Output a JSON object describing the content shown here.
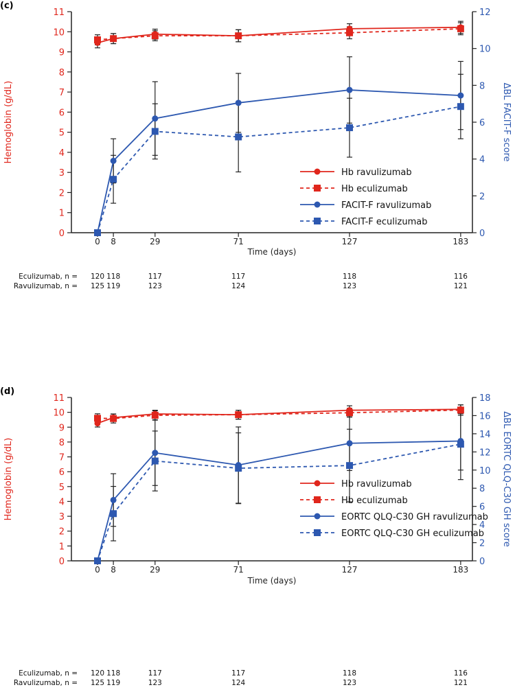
{
  "colors": {
    "red": "#e0261c",
    "blue": "#2d58b0",
    "black": "#222222"
  },
  "chart_data": [
    {
      "panel_label": "(c)",
      "type": "line",
      "xlabel": "Time (days)",
      "x": [
        0,
        8,
        29,
        71,
        127,
        183
      ],
      "x_tick_labels": [
        "0",
        "8",
        "29",
        "71",
        "127",
        "183"
      ],
      "ylabel_left": "Hemoglobin (g/dL)",
      "ylim_left": [
        0,
        11
      ],
      "y_ticks_left": [
        "0",
        "1",
        "2",
        "3",
        "4",
        "5",
        "6",
        "7",
        "8",
        "9",
        "10",
        "11"
      ],
      "ylabel_right": "ΔBL FACIT-F score",
      "ylim_right": [
        0,
        12
      ],
      "y_ticks_right": [
        "0",
        "2",
        "4",
        "6",
        "8",
        "10",
        "12"
      ],
      "legend_position": "bottom-right",
      "series": [
        {
          "name": "Hb ravulizumab",
          "axis": "left",
          "color": "red",
          "dash": false,
          "marker": "circle",
          "values": [
            9.45,
            9.66,
            9.88,
            9.8,
            10.15,
            10.22
          ],
          "err": [
            0.25,
            0.25,
            0.25,
            0.3,
            0.25,
            0.3
          ]
        },
        {
          "name": "Hb eculizumab",
          "axis": "left",
          "color": "red",
          "dash": true,
          "marker": "square",
          "values": [
            9.6,
            9.66,
            9.8,
            9.8,
            9.95,
            10.15
          ],
          "err": [
            0.25,
            0.25,
            0.25,
            0.3,
            0.3,
            0.3
          ]
        },
        {
          "name": "FACIT-F ravulizumab",
          "axis": "right",
          "color": "blue",
          "dash": false,
          "marker": "circle",
          "values": [
            0,
            3.9,
            6.2,
            7.05,
            7.75,
            7.45
          ],
          "err": [
            0,
            1.2,
            2.0,
            1.6,
            1.8,
            1.85
          ]
        },
        {
          "name": "FACIT-F eculizumab",
          "axis": "right",
          "color": "blue",
          "dash": true,
          "marker": "square",
          "values": [
            0,
            2.9,
            5.5,
            5.2,
            5.7,
            6.85
          ],
          "err": [
            0,
            1.3,
            1.5,
            1.9,
            1.6,
            1.75
          ]
        }
      ],
      "n_table": [
        {
          "label": "Eculizumab, n =",
          "values": [
            "120",
            "118",
            "117",
            "117",
            "118",
            "116"
          ]
        },
        {
          "label": "Ravulizumab, n =",
          "values": [
            "125",
            "119",
            "123",
            "124",
            "123",
            "121"
          ]
        }
      ]
    },
    {
      "panel_label": "(d)",
      "type": "line",
      "xlabel": "Time (days)",
      "x": [
        0,
        8,
        29,
        71,
        127,
        183
      ],
      "x_tick_labels": [
        "0",
        "8",
        "29",
        "71",
        "127",
        "183"
      ],
      "ylabel_left": "Hemoglobin (g/dL)",
      "ylim_left": [
        0,
        11
      ],
      "y_ticks_left": [
        "0",
        "1",
        "2",
        "3",
        "4",
        "5",
        "6",
        "7",
        "8",
        "9",
        "10",
        "11"
      ],
      "ylabel_right": "ΔBL EORTC QLQ-C30 GH score",
      "ylim_right": [
        0,
        18
      ],
      "y_ticks_right": [
        "0",
        "2",
        "4",
        "6",
        "8",
        "10",
        "12",
        "14",
        "16",
        "18"
      ],
      "legend_position": "bottom-right",
      "series": [
        {
          "name": "Hb ravulizumab",
          "axis": "left",
          "color": "red",
          "dash": false,
          "marker": "circle",
          "values": [
            9.26,
            9.64,
            9.89,
            9.84,
            10.14,
            10.2
          ],
          "err": [
            0.25,
            0.25,
            0.25,
            0.3,
            0.3,
            0.3
          ]
        },
        {
          "name": "Hb eculizumab",
          "axis": "left",
          "color": "red",
          "dash": true,
          "marker": "square",
          "values": [
            9.6,
            9.58,
            9.8,
            9.84,
            9.97,
            10.15
          ],
          "err": [
            0.3,
            0.3,
            0.3,
            0.3,
            0.3,
            0.35
          ]
        },
        {
          "name": "EORTC QLQ-C30 GH ravulizumab",
          "axis": "right",
          "color": "blue",
          "dash": false,
          "marker": "circle",
          "values": [
            0,
            6.7,
            11.9,
            10.55,
            12.95,
            13.2
          ],
          "err": [
            0,
            2.9,
            3.6,
            4.2,
            3.0,
            3.2
          ]
        },
        {
          "name": "EORTC QLQ-C30 GH eculizumab",
          "axis": "right",
          "color": "blue",
          "dash": true,
          "marker": "square",
          "values": [
            0,
            5.2,
            11.0,
            10.2,
            10.5,
            12.85
          ],
          "err": [
            0,
            3.0,
            3.3,
            3.9,
            4.0,
            3.9
          ]
        }
      ],
      "n_table": [
        {
          "label": "Eculizumab, n =",
          "values": [
            "120",
            "118",
            "117",
            "117",
            "118",
            "116"
          ]
        },
        {
          "label": "Ravulizumab, n =",
          "values": [
            "125",
            "119",
            "123",
            "124",
            "123",
            "121"
          ]
        }
      ]
    }
  ]
}
